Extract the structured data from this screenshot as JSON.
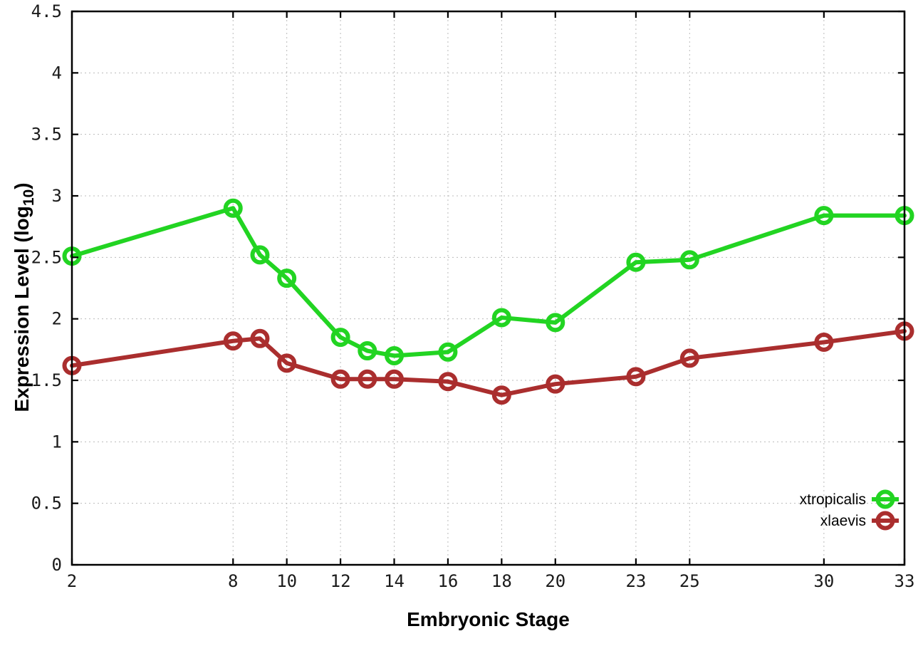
{
  "figure": {
    "background": "#ffffff",
    "border_color": "#000000",
    "grid_color": "#bbbbbb",
    "tick_color": "#000000"
  },
  "chart_data": {
    "type": "line",
    "title": "",
    "xlabel": "Embryonic Stage",
    "ylabel": "Expression Level (log10)",
    "ylabel_parts": {
      "pre": "Expression Level (log",
      "sub": "10",
      "post": ")"
    },
    "xlim": [
      2,
      33
    ],
    "ylim": [
      0,
      4.5
    ],
    "xticks": [
      2,
      8,
      10,
      12,
      14,
      16,
      18,
      20,
      23,
      25,
      30,
      33
    ],
    "yticks": [
      0,
      0.5,
      1,
      1.5,
      2,
      2.5,
      3,
      3.5,
      4,
      4.5
    ],
    "grid": true,
    "legend_position": "bottom-right",
    "x": [
      2,
      8,
      9,
      10,
      12,
      13,
      14,
      16,
      18,
      20,
      23,
      25,
      30,
      33
    ],
    "series": [
      {
        "name": "xtropicalis",
        "color": "#22d422",
        "marker": "open-circle",
        "values": [
          2.51,
          2.9,
          2.52,
          2.33,
          1.85,
          1.74,
          1.7,
          1.73,
          2.01,
          1.97,
          2.46,
          2.48,
          2.84,
          2.84
        ]
      },
      {
        "name": "xlaevis",
        "color": "#aa2e2e",
        "marker": "open-circle",
        "values": [
          1.62,
          1.82,
          1.84,
          1.64,
          1.51,
          1.51,
          1.51,
          1.49,
          1.38,
          1.47,
          1.53,
          1.68,
          1.81,
          1.9
        ]
      }
    ]
  }
}
